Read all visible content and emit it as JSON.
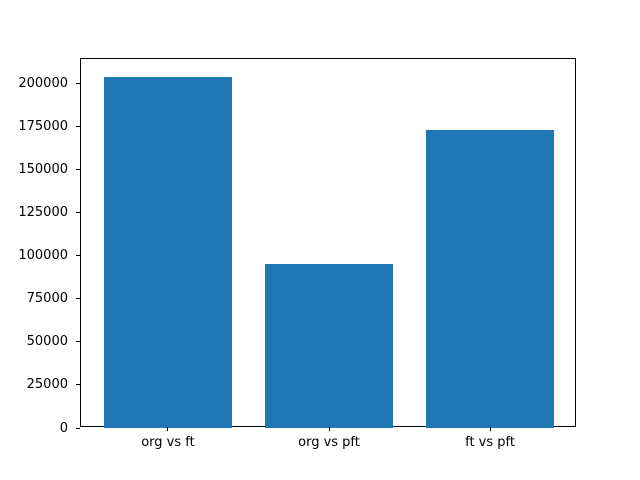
{
  "figure": {
    "background": "#ffffff",
    "bar_color": "#1f77b4",
    "spine_color": "#000000",
    "text_color": "#000000"
  },
  "chart_data": {
    "type": "bar",
    "categories": [
      "org vs ft",
      "org vs pft",
      "ft vs pft"
    ],
    "values": [
      204000,
      95000,
      173000
    ],
    "title": "",
    "xlabel": "",
    "ylabel": "",
    "ylim": [
      0,
      214200
    ],
    "xlim": [
      -0.54,
      2.54
    ],
    "bar_width": 0.8,
    "yticks": [
      0,
      25000,
      50000,
      75000,
      100000,
      125000,
      150000,
      175000,
      200000
    ],
    "ytick_labels": [
      "0",
      "25000",
      "50000",
      "75000",
      "100000",
      "125000",
      "150000",
      "175000",
      "200000"
    ],
    "grid": false,
    "legend": null
  }
}
